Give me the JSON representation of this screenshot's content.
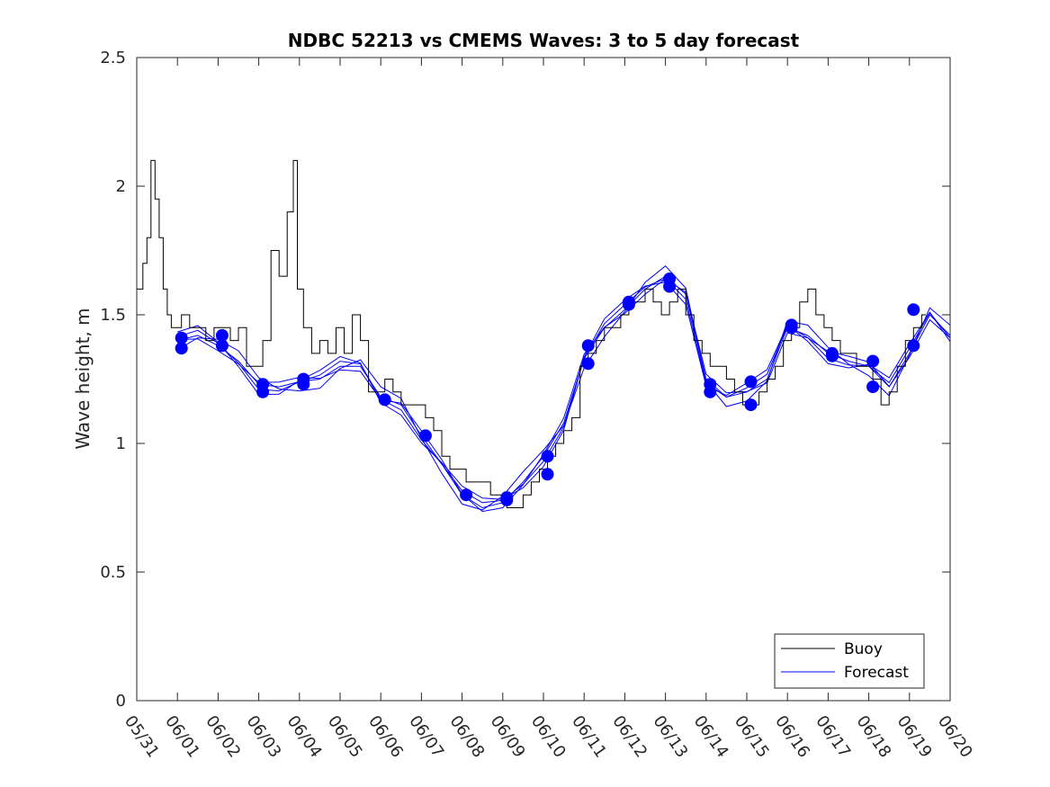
{
  "chart_data": {
    "type": "line",
    "title": "NDBC 52213 vs CMEMS Waves: 3 to 5 day forecast",
    "ylabel": "Wave height, m",
    "xlabel": "",
    "xlim": [
      "05/31",
      "06/20"
    ],
    "ylim": [
      0,
      2.5
    ],
    "x_tick_labels": [
      "05/31",
      "06/01",
      "06/02",
      "06/03",
      "06/04",
      "06/05",
      "06/06",
      "06/07",
      "06/08",
      "06/09",
      "06/10",
      "06/11",
      "06/12",
      "06/13",
      "06/14",
      "06/15",
      "06/16",
      "06/17",
      "06/18",
      "06/19",
      "06/20"
    ],
    "y_tick_labels": [
      "0",
      "0.5",
      "1",
      "1.5",
      "2",
      "2.5"
    ],
    "y_ticks": [
      0,
      0.5,
      1,
      1.5,
      2,
      2.5
    ],
    "grid": false,
    "legend_position": "bottom-right",
    "legend": [
      "Buoy",
      "Forecast"
    ],
    "colors": {
      "buoy": "#000000",
      "forecast": "#0000ff",
      "axes": "#262626"
    },
    "series": [
      {
        "name": "Buoy",
        "x_days": [
          0,
          0.1,
          0.2,
          0.3,
          0.4,
          0.5,
          0.6,
          0.7,
          0.8,
          0.9,
          1.0,
          1.2,
          1.4,
          1.6,
          1.8,
          2.0,
          2.2,
          2.4,
          2.6,
          2.8,
          3.0,
          3.2,
          3.4,
          3.6,
          3.8,
          3.9,
          4.0,
          4.2,
          4.4,
          4.6,
          4.8,
          5.0,
          5.2,
          5.4,
          5.6,
          5.8,
          6.0,
          6.2,
          6.4,
          6.6,
          6.8,
          7.0,
          7.2,
          7.4,
          7.6,
          7.8,
          8.0,
          8.2,
          8.4,
          8.6,
          8.8,
          9.0,
          9.2,
          9.4,
          9.6,
          9.8,
          10.0,
          10.2,
          10.4,
          10.6,
          10.8,
          11.0,
          11.2,
          11.4,
          11.6,
          11.8,
          12.0,
          12.2,
          12.4,
          12.6,
          12.8,
          13.0,
          13.2,
          13.4,
          13.6,
          13.8,
          14.0,
          14.2,
          14.4,
          14.6,
          14.8,
          15.0,
          15.2,
          15.4,
          15.6,
          15.8,
          16.0,
          16.2,
          16.4,
          16.6,
          16.8,
          17.0,
          17.2,
          17.4,
          17.6,
          17.8,
          18.0,
          18.2,
          18.4,
          18.6,
          18.8,
          19.0,
          19.2,
          19.4
        ],
        "values": [
          1.6,
          1.6,
          1.7,
          1.8,
          2.1,
          1.95,
          1.8,
          1.6,
          1.5,
          1.45,
          1.45,
          1.5,
          1.45,
          1.45,
          1.4,
          1.45,
          1.45,
          1.4,
          1.45,
          1.3,
          1.3,
          1.4,
          1.75,
          1.65,
          1.9,
          2.1,
          1.6,
          1.45,
          1.35,
          1.4,
          1.35,
          1.45,
          1.35,
          1.5,
          1.4,
          1.2,
          1.2,
          1.25,
          1.2,
          1.15,
          1.15,
          1.15,
          1.1,
          1.05,
          0.95,
          0.9,
          0.9,
          0.85,
          0.85,
          0.85,
          0.8,
          0.8,
          0.75,
          0.75,
          0.8,
          0.85,
          0.9,
          0.95,
          1.0,
          1.05,
          1.1,
          1.3,
          1.35,
          1.4,
          1.45,
          1.45,
          1.5,
          1.55,
          1.55,
          1.6,
          1.55,
          1.5,
          1.55,
          1.6,
          1.5,
          1.4,
          1.35,
          1.3,
          1.3,
          1.25,
          1.2,
          1.15,
          1.15,
          1.2,
          1.25,
          1.3,
          1.4,
          1.45,
          1.55,
          1.6,
          1.5,
          1.45,
          1.4,
          1.35,
          1.35,
          1.3,
          1.3,
          1.25,
          1.15,
          1.2,
          1.3,
          1.4,
          1.45,
          1.5
        ],
        "ylim_note": ""
      },
      {
        "name": "Forecast",
        "x_days": [
          1,
          1.5,
          2,
          2.5,
          3,
          3.5,
          4,
          4.5,
          5,
          5.5,
          6,
          6.5,
          7,
          7.5,
          8,
          8.5,
          9,
          9.5,
          10,
          10.5,
          11,
          11.5,
          12,
          12.5,
          13,
          13.5,
          14,
          14.5,
          15,
          15.5,
          16,
          16.5,
          17,
          17.5,
          18,
          18.5,
          19,
          19.5,
          20
        ],
        "values": [
          1.4,
          1.42,
          1.38,
          1.32,
          1.23,
          1.22,
          1.24,
          1.25,
          1.3,
          1.3,
          1.18,
          1.15,
          1.03,
          0.92,
          0.8,
          0.75,
          0.77,
          0.85,
          0.95,
          1.08,
          1.33,
          1.45,
          1.52,
          1.6,
          1.65,
          1.58,
          1.25,
          1.18,
          1.2,
          1.25,
          1.45,
          1.42,
          1.35,
          1.32,
          1.3,
          1.22,
          1.35,
          1.5,
          1.42
        ]
      }
    ],
    "forecast_markers": {
      "x_days": [
        1.1,
        1.1,
        2.1,
        2.1,
        3.1,
        3.1,
        4.1,
        4.1,
        6.1,
        7.1,
        8.1,
        9.1,
        9.1,
        10.1,
        10.1,
        11.1,
        11.1,
        12.1,
        12.1,
        13.1,
        13.1,
        14.1,
        14.1,
        15.1,
        15.1,
        16.1,
        16.1,
        17.1,
        17.1,
        18.1,
        18.1,
        19.1,
        19.1
      ],
      "values": [
        1.41,
        1.37,
        1.42,
        1.38,
        1.23,
        1.2,
        1.25,
        1.23,
        1.17,
        1.03,
        0.8,
        0.79,
        0.78,
        0.95,
        0.88,
        1.38,
        1.31,
        1.55,
        1.54,
        1.64,
        1.61,
        1.23,
        1.2,
        1.24,
        1.15,
        1.46,
        1.45,
        1.35,
        1.34,
        1.32,
        1.22,
        1.52,
        1.38
      ]
    }
  }
}
